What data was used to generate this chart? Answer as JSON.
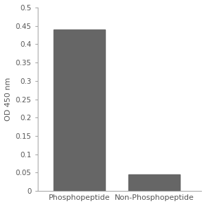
{
  "categories": [
    "Phosphopeptide",
    "Non-Phosphopeptide"
  ],
  "values": [
    0.44,
    0.045
  ],
  "bar_color": "#666666",
  "bar_width": 0.55,
  "ylabel": "OD 450 nm",
  "ylim": [
    0,
    0.5
  ],
  "yticks": [
    0,
    0.05,
    0.1,
    0.15,
    0.2,
    0.25,
    0.3,
    0.35,
    0.4,
    0.45,
    0.5
  ],
  "ylabel_fontsize": 8,
  "tick_fontsize": 7.5,
  "xlabel_fontsize": 8,
  "background_color": "#ffffff",
  "figure_background": "#ffffff",
  "spine_color": "#aaaaaa",
  "tick_color": "#555555",
  "label_color": "#555555"
}
